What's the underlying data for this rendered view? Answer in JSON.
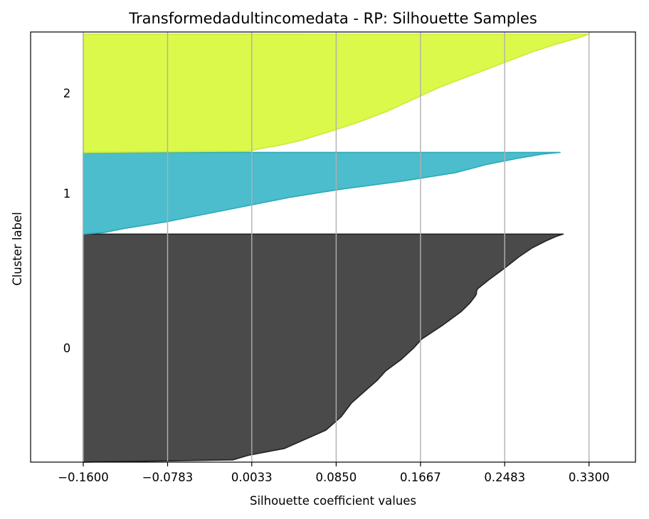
{
  "chart_data": {
    "type": "area",
    "title": "Transformedadultincomedata - RP: Silhouette Samples",
    "xlabel": "Silhouette coefficient values",
    "ylabel": "Cluster label",
    "xticks": [
      "−0.1600",
      "−0.0783",
      "0.0033",
      "0.0850",
      "0.1667",
      "0.2483",
      "0.3300"
    ],
    "xtick_values": [
      -0.16,
      -0.0783,
      0.0033,
      0.085,
      0.1667,
      0.2483,
      0.33
    ],
    "xlim": [
      -0.211,
      0.375
    ],
    "ylim": [
      0,
      100
    ],
    "grid": "vertical",
    "clusters": [
      {
        "label": "0",
        "color": "#4a4a4a",
        "edge": "#222222",
        "y_range": [
          0,
          53
        ],
        "profile": [
          [
            0.0,
            -0.16
          ],
          [
            0.01,
            -0.015
          ],
          [
            0.03,
            0.0
          ],
          [
            0.06,
            0.035
          ],
          [
            0.1,
            0.055
          ],
          [
            0.14,
            0.075
          ],
          [
            0.2,
            0.09
          ],
          [
            0.26,
            0.1
          ],
          [
            0.3,
            0.11
          ],
          [
            0.36,
            0.125
          ],
          [
            0.4,
            0.133
          ],
          [
            0.45,
            0.148
          ],
          [
            0.5,
            0.16
          ],
          [
            0.54,
            0.168
          ],
          [
            0.6,
            0.188
          ],
          [
            0.66,
            0.206
          ],
          [
            0.7,
            0.215
          ],
          [
            0.73,
            0.22
          ],
          [
            0.74,
            0.221
          ],
          [
            0.75,
            0.221
          ],
          [
            0.76,
            0.222
          ],
          [
            0.8,
            0.233
          ],
          [
            0.85,
            0.248
          ],
          [
            0.9,
            0.262
          ],
          [
            0.94,
            0.275
          ],
          [
            0.97,
            0.288
          ],
          [
            0.99,
            0.298
          ],
          [
            1.0,
            0.305
          ]
        ]
      },
      {
        "label": "1",
        "color": "#4bbdcd",
        "edge": "#2aaabb",
        "y_range": [
          53,
          72
        ],
        "profile": [
          [
            0.0,
            -0.16
          ],
          [
            0.02,
            -0.14
          ],
          [
            0.07,
            -0.12
          ],
          [
            0.15,
            -0.08
          ],
          [
            0.25,
            -0.04
          ],
          [
            0.35,
            0.0
          ],
          [
            0.45,
            0.04
          ],
          [
            0.55,
            0.09
          ],
          [
            0.65,
            0.15
          ],
          [
            0.75,
            0.2
          ],
          [
            0.85,
            0.23
          ],
          [
            0.93,
            0.262
          ],
          [
            0.98,
            0.285
          ],
          [
            1.0,
            0.302
          ]
        ]
      },
      {
        "label": "2",
        "color": "#dbf94a",
        "edge": "#cfe838",
        "y_range": [
          72,
          99.5
        ],
        "profile": [
          [
            0.0,
            -0.16
          ],
          [
            0.01,
            0.0
          ],
          [
            0.03,
            0.01
          ],
          [
            0.06,
            0.03
          ],
          [
            0.1,
            0.05
          ],
          [
            0.18,
            0.08
          ],
          [
            0.25,
            0.105
          ],
          [
            0.35,
            0.135
          ],
          [
            0.45,
            0.16
          ],
          [
            0.55,
            0.185
          ],
          [
            0.65,
            0.215
          ],
          [
            0.75,
            0.245
          ],
          [
            0.85,
            0.275
          ],
          [
            0.92,
            0.3
          ],
          [
            0.97,
            0.32
          ],
          [
            1.0,
            0.33
          ]
        ]
      }
    ]
  }
}
